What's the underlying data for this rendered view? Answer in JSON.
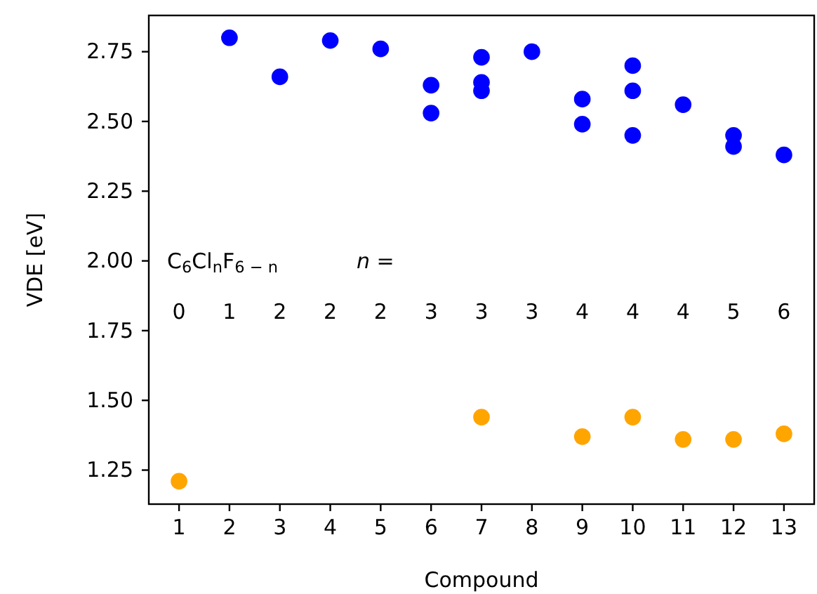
{
  "chart_data": {
    "type": "scatter",
    "xlabel": "Compound",
    "ylabel": "VDE [eV]",
    "xlim": [
      0.4,
      13.6
    ],
    "xticks": [
      1,
      2,
      3,
      4,
      5,
      6,
      7,
      8,
      9,
      10,
      11,
      12,
      13
    ],
    "ylim": [
      1.128,
      2.88
    ],
    "yticks": [
      1.25,
      {
        "value": 1.5,
        "label": "1.50"
      },
      1.75,
      {
        "value": 2,
        "label": "2.00"
      },
      2.25,
      {
        "value": 2.5,
        "label": "2.50"
      },
      2.75
    ],
    "marker": "circle",
    "grid": false,
    "series": [
      {
        "color": "#0000ff",
        "x": [
          2,
          3,
          4,
          5,
          6,
          6,
          7,
          7,
          7,
          8,
          9,
          9,
          10,
          10,
          10,
          11,
          12,
          12,
          13
        ],
        "values": [
          2.8,
          2.66,
          2.79,
          2.76,
          2.63,
          2.53,
          2.73,
          2.64,
          2.61,
          2.75,
          2.58,
          2.49,
          2.7,
          2.61,
          2.45,
          2.56,
          2.45,
          2.41,
          2.38
        ]
      },
      {
        "color": "#ffa500",
        "x": [
          1,
          7,
          9,
          10,
          11,
          12,
          13
        ],
        "values": [
          1.21,
          1.44,
          1.37,
          1.44,
          1.36,
          1.36,
          1.38
        ]
      }
    ],
    "annotations": [
      "C$_{6}$Cl$_{n}$F$_{6 − n}$",
      "n =",
      "0",
      "1",
      "2",
      "2",
      "2",
      "3",
      "3",
      "3",
      "4",
      "4",
      "4",
      "5",
      "6"
    ]
  }
}
